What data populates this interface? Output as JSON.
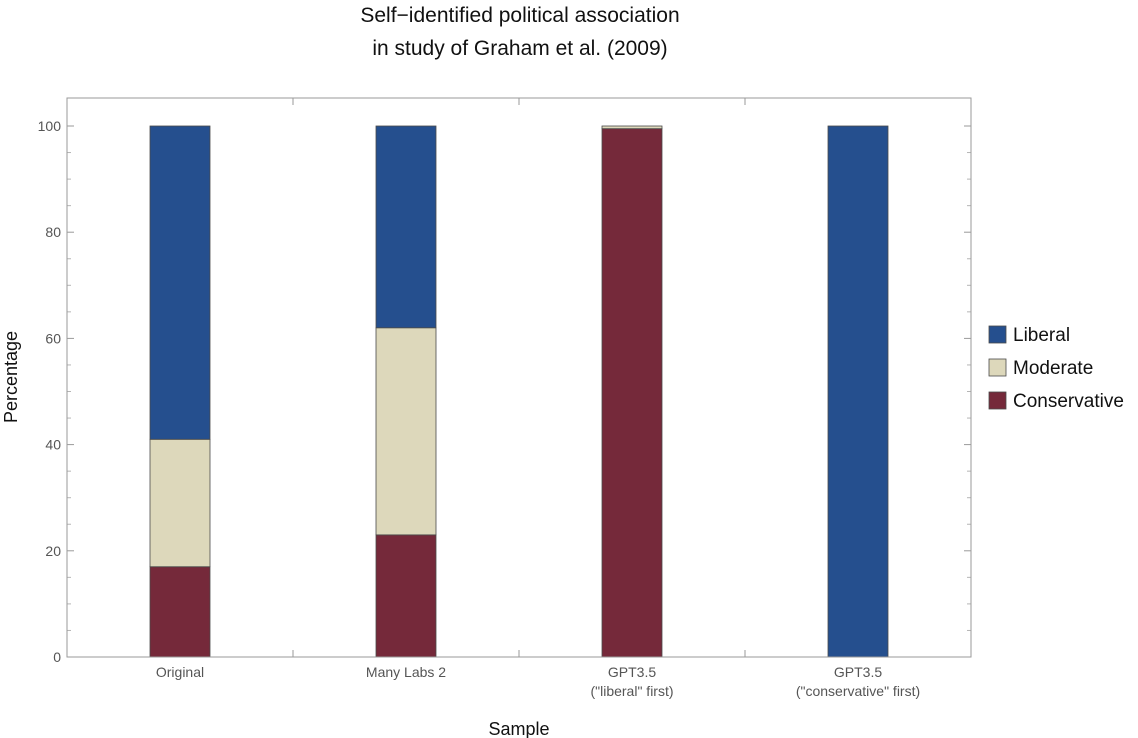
{
  "chart_data": {
    "type": "bar",
    "stacked": true,
    "title": [
      "Self−identified political association",
      "in study of Graham et al. (2009)"
    ],
    "xlabel": "Sample",
    "ylabel": "Percentage",
    "ylim": [
      0,
      100
    ],
    "yticks": [
      0,
      20,
      40,
      60,
      80,
      100
    ],
    "grid": false,
    "legend_position": "right",
    "categories": [
      [
        "Original"
      ],
      [
        "Many Labs 2"
      ],
      [
        "GPT3.5",
        "(\"liberal\" first)"
      ],
      [
        "GPT3.5",
        "(\"conservative\" first)"
      ]
    ],
    "series": [
      {
        "name": "Conservative",
        "color": "#75293a",
        "values": [
          17,
          23,
          99.5,
          0
        ]
      },
      {
        "name": "Moderate",
        "color": "#ddd8bb",
        "values": [
          24,
          39,
          0.5,
          0
        ]
      },
      {
        "name": "Liberal",
        "color": "#254f8e",
        "values": [
          59,
          38,
          0,
          100
        ]
      }
    ],
    "legend": [
      "Liberal",
      "Moderate",
      "Conservative"
    ]
  }
}
